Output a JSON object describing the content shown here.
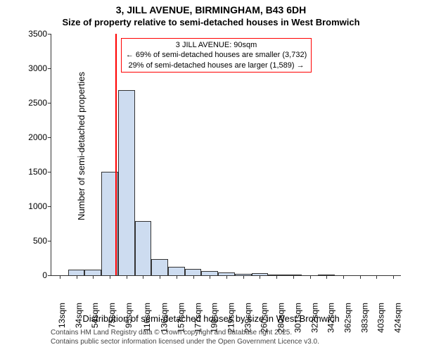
{
  "title_line1": "3, JILL AVENUE, BIRMINGHAM, B43 6DH",
  "title_line2": "Size of property relative to semi-detached houses in West Bromwich",
  "y_axis_label": "Number of semi-detached properties",
  "x_axis_label": "Distribution of semi-detached houses by size in West Bromwich",
  "chart": {
    "type": "histogram",
    "ylim": [
      0,
      3500
    ],
    "ytick_step": 500,
    "x_tick_labels": [
      "13sqm",
      "34sqm",
      "54sqm",
      "75sqm",
      "95sqm",
      "116sqm",
      "136sqm",
      "157sqm",
      "177sqm",
      "198sqm",
      "219sqm",
      "239sqm",
      "260sqm",
      "280sqm",
      "301sqm",
      "322sqm",
      "342sqm",
      "362sqm",
      "383sqm",
      "403sqm",
      "424sqm"
    ],
    "bars": [
      0,
      85,
      85,
      1500,
      2680,
      780,
      230,
      120,
      90,
      60,
      40,
      25,
      30,
      10,
      8,
      0,
      5,
      0,
      0,
      0,
      0
    ],
    "bar_fill": "#cddcf0",
    "bar_stroke": "#333333",
    "highlight_index_pos": 4,
    "highlight_color": "#ff0000",
    "background_color": "#ffffff",
    "axis_color": "#333333",
    "tick_fontsize": 12,
    "label_fontsize": 13,
    "title_fontsize": 14
  },
  "annotation": {
    "line1": "3 JILL AVENUE: 90sqm",
    "line2": "← 69% of semi-detached houses are smaller (3,732)",
    "line3": "29% of semi-detached houses are larger (1,589) →",
    "border_color": "#ff0000",
    "text_color": "#000000"
  },
  "copyright": {
    "line1": "Contains HM Land Registry data © Crown copyright and database right 2025.",
    "line2": "Contains public sector information licensed under the Open Government Licence v3.0."
  }
}
